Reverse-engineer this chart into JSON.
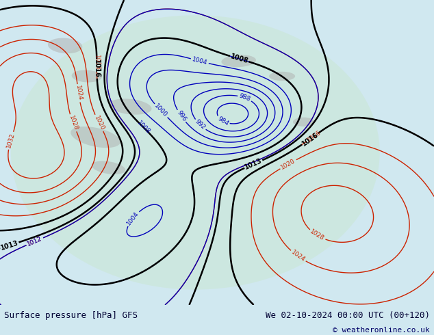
{
  "title_left": "Surface pressure [hPa] GFS",
  "title_right": "We 02-10-2024 00:00 UTC (00+120)",
  "copyright": "© weatheronline.co.uk",
  "background_color": "#d0e8f0",
  "map_bg_color": "#d0e8f0",
  "land_color": "#c8e6c9",
  "fig_width": 6.34,
  "fig_height": 4.9,
  "dpi": 100,
  "bottom_bar_color": "#e8e8e8",
  "bottom_text_color": "#000033",
  "bottom_bar_height": 0.09,
  "title_fontsize": 9,
  "copyright_fontsize": 8
}
